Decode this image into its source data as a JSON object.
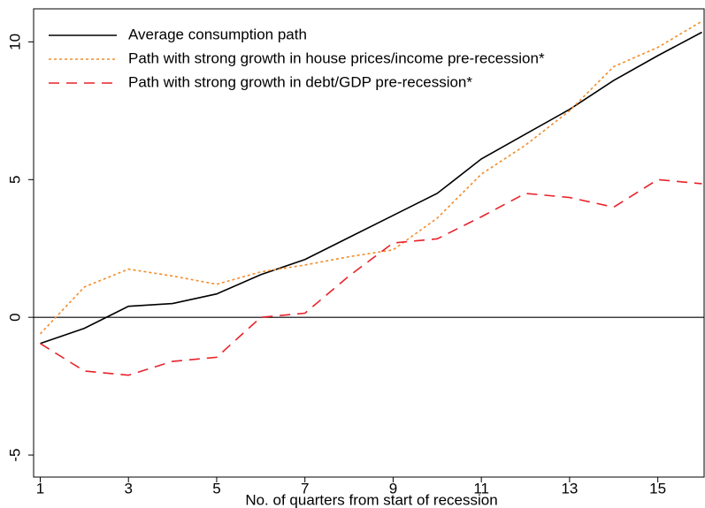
{
  "chart_data": {
    "type": "line",
    "x_label": "No. of quarters from start of recession",
    "x": [
      1,
      2,
      3,
      4,
      5,
      6,
      7,
      8,
      9,
      10,
      11,
      12,
      13,
      14,
      15,
      16
    ],
    "series": [
      {
        "name": "Average consumption path",
        "color": "#000000",
        "dash": "none",
        "values": [
          -0.95,
          -0.4,
          0.4,
          0.5,
          0.85,
          1.55,
          2.1,
          2.9,
          3.7,
          4.5,
          5.75,
          6.65,
          7.55,
          8.6,
          9.5,
          10.35
        ]
      },
      {
        "name": "Path with strong growth in house prices/income pre-recession*",
        "color": "#f28c28",
        "dash": "3,3",
        "values": [
          -0.6,
          1.1,
          1.75,
          1.5,
          1.2,
          1.65,
          1.9,
          2.2,
          2.45,
          3.6,
          5.2,
          6.25,
          7.5,
          9.1,
          9.8,
          10.75
        ]
      },
      {
        "name": "Path with strong growth in debt/GDP pre-recession*",
        "color": "#e8222a",
        "dash": "12,8",
        "values": [
          -0.95,
          -1.95,
          -2.1,
          -1.6,
          -1.45,
          0,
          0.15,
          1.5,
          2.7,
          2.85,
          3.65,
          4.5,
          4.35,
          4,
          5,
          4.85
        ]
      }
    ],
    "xlim": [
      0.85,
      16.05
    ],
    "xticks": [
      1,
      3,
      5,
      7,
      9,
      11,
      13,
      15
    ],
    "ylim": [
      -5.8,
      11.2
    ],
    "yticks": [
      -5,
      0,
      5,
      10
    ],
    "reference_line": 0,
    "grid": false,
    "legend": "upper left"
  }
}
